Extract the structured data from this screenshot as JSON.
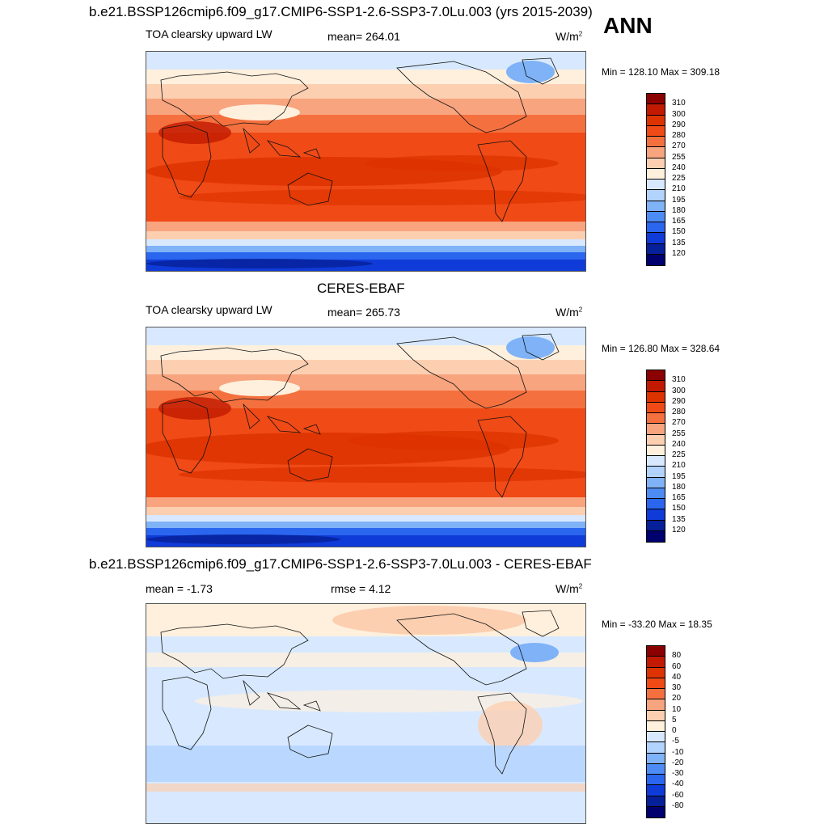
{
  "season": "ANN",
  "units": "W/m",
  "units_exp": "2",
  "panels": [
    {
      "title": "b.e21.BSSP126cmip6.f09_g17.CMIP6-SSP1-2.6-SSP3-7.0Lu.003 (yrs 2015-2039)",
      "left_label": "TOA clearsky upward LW",
      "center_label": "mean= 264.01",
      "minmax": "Min = 128.10 Max = 309.18",
      "levels": [
        "310",
        "300",
        "290",
        "280",
        "270",
        "255",
        "240",
        "225",
        "210",
        "195",
        "180",
        "165",
        "150",
        "135",
        "120"
      ],
      "colors": [
        "#8b0000",
        "#c11a00",
        "#dd3300",
        "#f04a16",
        "#f4713f",
        "#f8a47e",
        "#fccfb1",
        "#fff0dd",
        "#d8e9ff",
        "#b3d3ff",
        "#7fb2f7",
        "#4d8cf4",
        "#2a66ee",
        "#0f3bd8",
        "#052099",
        "#00006e"
      ]
    },
    {
      "title": "CERES-EBAF",
      "left_label": "TOA clearsky upward LW",
      "center_label": "mean= 265.73",
      "minmax": "Min = 126.80 Max = 328.64",
      "levels": [
        "310",
        "300",
        "290",
        "280",
        "270",
        "255",
        "240",
        "225",
        "210",
        "195",
        "180",
        "165",
        "150",
        "135",
        "120"
      ],
      "colors": [
        "#8b0000",
        "#c11a00",
        "#dd3300",
        "#f04a16",
        "#f4713f",
        "#f8a47e",
        "#fccfb1",
        "#fff0dd",
        "#d8e9ff",
        "#b3d3ff",
        "#7fb2f7",
        "#4d8cf4",
        "#2a66ee",
        "#0f3bd8",
        "#052099",
        "#00006e"
      ]
    },
    {
      "title": "b.e21.BSSP126cmip6.f09_g17.CMIP6-SSP1-2.6-SSP3-7.0Lu.003 - CERES-EBAF",
      "left_label": "mean =  -1.73",
      "center_label": "rmse =   4.12",
      "minmax": "Min = -33.20 Max =  18.35",
      "levels": [
        "80",
        "60",
        "40",
        "30",
        "20",
        "10",
        "5",
        "0",
        "-5",
        "-10",
        "-20",
        "-30",
        "-40",
        "-60",
        "-80"
      ],
      "colors": [
        "#8b0000",
        "#c11a00",
        "#dd3300",
        "#f04a16",
        "#f4713f",
        "#f8a47e",
        "#fccfb1",
        "#fff0dd",
        "#d8e9ff",
        "#b3d3ff",
        "#7fb2f7",
        "#4d8cf4",
        "#2a66ee",
        "#0f3bd8",
        "#052099",
        "#00006e"
      ]
    }
  ]
}
